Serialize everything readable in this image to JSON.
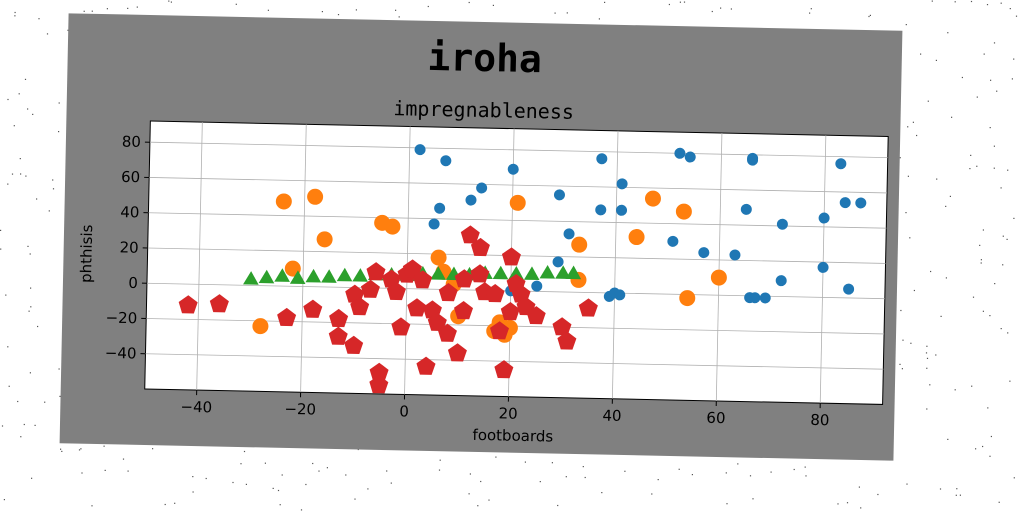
{
  "figure": {
    "title": "iroha"
  },
  "chart_data": {
    "type": "scatter",
    "title": "impregnableness",
    "xlabel": "footboards",
    "ylabel": "phthisis",
    "xlim": [
      -50,
      92
    ],
    "ylim": [
      -60,
      92
    ],
    "xticks": [
      -40,
      -20,
      0,
      20,
      40,
      60,
      80
    ],
    "yticks": [
      -40,
      -20,
      0,
      20,
      40,
      60,
      80
    ],
    "grid": true,
    "colors": {
      "figure_bg": "#808080",
      "axes_bg": "#ffffff"
    },
    "series": [
      {
        "marker": "circle",
        "color": "#1f77b4",
        "points": [
          [
            2,
            79
          ],
          [
            7,
            73
          ],
          [
            14,
            58
          ],
          [
            20,
            69
          ],
          [
            12,
            51
          ],
          [
            6,
            46
          ],
          [
            5,
            37
          ],
          [
            29,
            55
          ],
          [
            31,
            33
          ],
          [
            37,
            76
          ],
          [
            41,
            62
          ],
          [
            37,
            47
          ],
          [
            41,
            47
          ],
          [
            51,
            30
          ],
          [
            52,
            80
          ],
          [
            54,
            78
          ],
          [
            57,
            24
          ],
          [
            63,
            23
          ],
          [
            65,
            49
          ],
          [
            66,
            78
          ],
          [
            66,
            77
          ],
          [
            72,
            41
          ],
          [
            80,
            45
          ],
          [
            83,
            76
          ],
          [
            84,
            54
          ],
          [
            87,
            54
          ],
          [
            72,
            9
          ],
          [
            80,
            17
          ],
          [
            85,
            5
          ],
          [
            66,
            -1
          ],
          [
            67,
            -1
          ],
          [
            69,
            -1
          ],
          [
            39,
            -2
          ],
          [
            40,
            0
          ],
          [
            41,
            -1
          ],
          [
            29,
            17
          ],
          [
            25,
            3
          ],
          [
            20,
            0
          ]
        ]
      },
      {
        "marker": "circle",
        "color": "#ff7f0e",
        "points": [
          [
            -24,
            48
          ],
          [
            -18,
            51
          ],
          [
            -16,
            27
          ],
          [
            -5,
            37
          ],
          [
            -3,
            35
          ],
          [
            21,
            50
          ],
          [
            47,
            54
          ],
          [
            53,
            47
          ],
          [
            44,
            32
          ],
          [
            33,
            27
          ],
          [
            6,
            18
          ],
          [
            -22,
            10
          ],
          [
            -28,
            -23
          ],
          [
            60,
            10
          ],
          [
            54,
            -2
          ],
          [
            33,
            7
          ],
          [
            10,
            -15
          ],
          [
            18,
            -18
          ],
          [
            19,
            -25
          ],
          [
            20,
            -21
          ],
          [
            17,
            -23
          ],
          [
            7,
            10
          ],
          [
            9,
            3
          ],
          [
            21,
            4
          ]
        ]
      },
      {
        "marker": "triangle",
        "color": "#2ca02c",
        "points": [
          [
            -30,
            3
          ],
          [
            -27,
            4
          ],
          [
            -24,
            5
          ],
          [
            -21,
            4
          ],
          [
            -18,
            5
          ],
          [
            -15,
            5
          ],
          [
            -12,
            6
          ],
          [
            -9,
            6
          ],
          [
            -6,
            7
          ],
          [
            -3,
            7
          ],
          [
            0,
            7
          ],
          [
            3,
            8
          ],
          [
            6,
            8
          ],
          [
            9,
            8
          ],
          [
            12,
            8
          ],
          [
            15,
            9
          ],
          [
            18,
            9
          ],
          [
            21,
            9
          ],
          [
            24,
            9
          ],
          [
            27,
            10
          ],
          [
            30,
            10
          ],
          [
            32,
            10
          ]
        ]
      },
      {
        "marker": "pentagon",
        "color": "#d62728",
        "points": [
          [
            -42,
            -12
          ],
          [
            -36,
            -11
          ],
          [
            -23,
            -18
          ],
          [
            -18,
            -13
          ],
          [
            -13,
            -18
          ],
          [
            -13,
            -28
          ],
          [
            -10,
            -33
          ],
          [
            -10,
            -4
          ],
          [
            -9,
            -11
          ],
          [
            -7,
            -1
          ],
          [
            -6,
            9
          ],
          [
            -5,
            -48
          ],
          [
            -5,
            -55
          ],
          [
            -3,
            5
          ],
          [
            -2,
            -2
          ],
          [
            -1,
            -22
          ],
          [
            0,
            8
          ],
          [
            1,
            11
          ],
          [
            2,
            -11
          ],
          [
            3,
            5
          ],
          [
            4,
            -44
          ],
          [
            5,
            -12
          ],
          [
            6,
            -19
          ],
          [
            8,
            -25
          ],
          [
            8,
            -2
          ],
          [
            10,
            -36
          ],
          [
            11,
            6
          ],
          [
            11,
            -12
          ],
          [
            12,
            31
          ],
          [
            14,
            24
          ],
          [
            14,
            9
          ],
          [
            15,
            -1
          ],
          [
            17,
            -2
          ],
          [
            18,
            -23
          ],
          [
            19,
            -45
          ],
          [
            20,
            19
          ],
          [
            20,
            -12
          ],
          [
            21,
            4
          ],
          [
            22,
            -2
          ],
          [
            23,
            -9
          ],
          [
            25,
            -14
          ],
          [
            30,
            -20
          ],
          [
            31,
            -28
          ],
          [
            35,
            -9
          ]
        ]
      }
    ]
  }
}
